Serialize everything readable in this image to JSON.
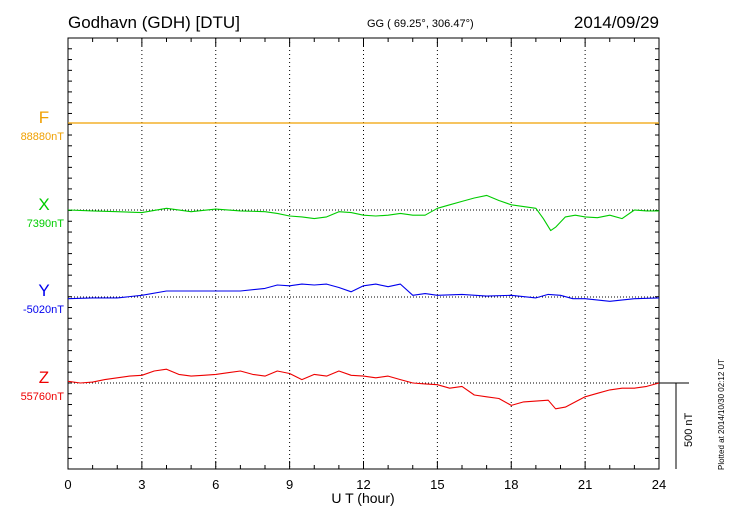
{
  "header": {
    "station": "Godhavn (GDH)  [DTU]",
    "coords": "GG ( 69.25°, 306.47°)",
    "date": "2014/09/29"
  },
  "footer": {
    "plotted": "Plotted at 2014/10/30 02:12 UT"
  },
  "colors": {
    "F": "#f0a000",
    "X": "#00cc00",
    "Y": "#0000ee",
    "Z": "#ee0000",
    "axis": "#000000"
  },
  "chart_data": {
    "type": "line",
    "xlabel": "U T (hour)",
    "xlim": [
      0,
      24
    ],
    "xticks": [
      0,
      3,
      6,
      9,
      12,
      15,
      18,
      21,
      24
    ],
    "scale_bar": {
      "label": "500 nT",
      "value": 500
    },
    "series": [
      {
        "name": "F",
        "baseline_label": "88880nT",
        "baseline": 88880,
        "x": [
          0,
          24
        ],
        "y": [
          88880,
          88880
        ]
      },
      {
        "name": "X",
        "baseline_label": "7390nT",
        "baseline": 7390,
        "x": [
          0,
          1,
          2,
          3,
          4,
          5,
          6,
          7,
          8,
          8.5,
          9,
          9.5,
          10,
          10.5,
          11,
          11.5,
          12,
          12.5,
          13,
          13.5,
          14,
          14.5,
          15,
          15.5,
          16,
          16.5,
          17,
          17.5,
          18,
          18.5,
          19,
          19.3,
          19.6,
          19.8,
          20.2,
          20.6,
          21,
          21.5,
          22,
          22.5,
          23,
          23.5,
          24
        ],
        "y": [
          7390,
          7385,
          7380,
          7375,
          7400,
          7380,
          7395,
          7385,
          7380,
          7370,
          7355,
          7350,
          7340,
          7350,
          7380,
          7375,
          7360,
          7355,
          7360,
          7370,
          7360,
          7360,
          7400,
          7420,
          7440,
          7460,
          7475,
          7445,
          7420,
          7410,
          7400,
          7340,
          7270,
          7290,
          7350,
          7360,
          7350,
          7345,
          7360,
          7340,
          7390,
          7385,
          7385
        ]
      },
      {
        "name": "Y",
        "baseline_label": "-5020nT",
        "baseline": -5020,
        "x": [
          0,
          1,
          2,
          3,
          4,
          5,
          6,
          7,
          8,
          8.5,
          9,
          9.5,
          10,
          10.5,
          11,
          11.5,
          12,
          12.5,
          13,
          13.5,
          14,
          14.5,
          15,
          16,
          17,
          18,
          19,
          19.5,
          20,
          20.5,
          21,
          22,
          23,
          24
        ],
        "y": [
          -5030,
          -5025,
          -5025,
          -5010,
          -4985,
          -4985,
          -4985,
          -4985,
          -4970,
          -4950,
          -4955,
          -4945,
          -4950,
          -4945,
          -4965,
          -4990,
          -4955,
          -4945,
          -4960,
          -4945,
          -5010,
          -5000,
          -5010,
          -5005,
          -5015,
          -5010,
          -5025,
          -5005,
          -5010,
          -5030,
          -5030,
          -5045,
          -5030,
          -5025
        ]
      },
      {
        "name": "Z",
        "baseline_label": "55760nT",
        "baseline": 55760,
        "x": [
          0,
          0.5,
          1,
          1.5,
          2,
          2.5,
          3,
          3.5,
          4,
          4.5,
          5,
          5.5,
          6,
          6.5,
          7,
          7.5,
          8,
          8.5,
          9,
          9.5,
          10,
          10.5,
          11,
          11.5,
          12,
          12.5,
          13,
          13.5,
          14,
          14.5,
          15,
          15.5,
          16,
          16.5,
          17,
          17.5,
          18,
          18.5,
          19,
          19.5,
          19.8,
          20.2,
          20.6,
          21,
          21.5,
          22,
          22.5,
          23,
          23.5,
          24
        ],
        "y": [
          55770,
          55760,
          55765,
          55780,
          55790,
          55800,
          55805,
          55830,
          55840,
          55810,
          55800,
          55805,
          55810,
          55820,
          55830,
          55810,
          55800,
          55830,
          55815,
          55780,
          55810,
          55800,
          55830,
          55805,
          55800,
          55790,
          55800,
          55780,
          55760,
          55755,
          55750,
          55730,
          55740,
          55690,
          55680,
          55670,
          55630,
          55650,
          55655,
          55660,
          55610,
          55620,
          55650,
          55680,
          55700,
          55720,
          55730,
          55730,
          55740,
          55760
        ]
      }
    ]
  }
}
